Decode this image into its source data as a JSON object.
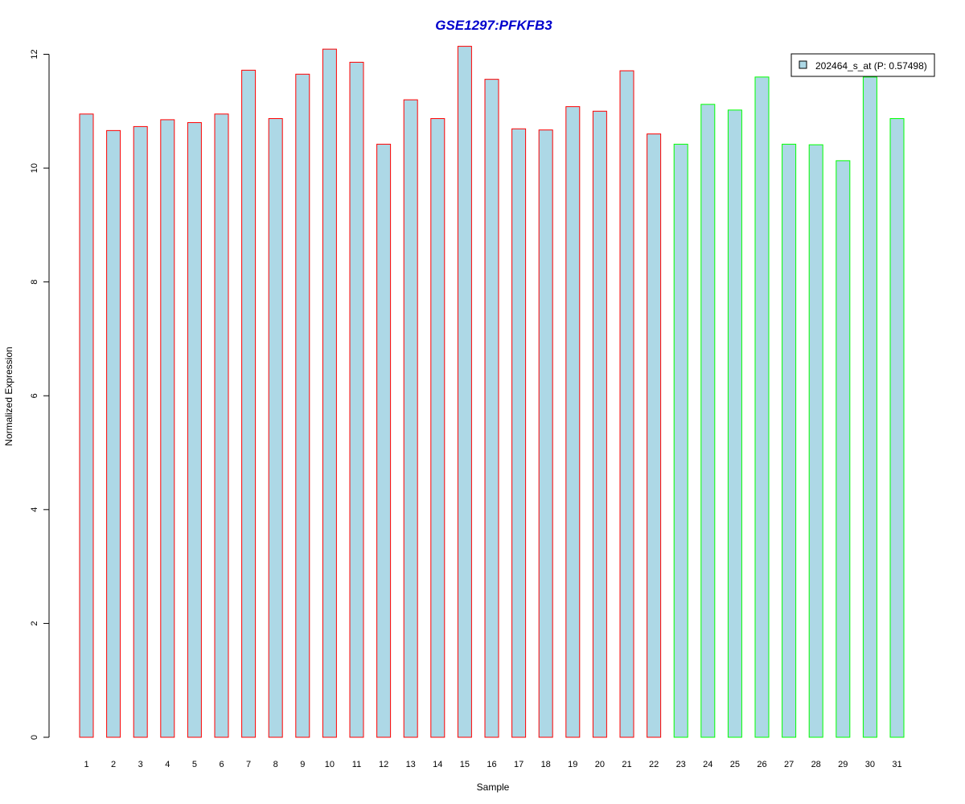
{
  "chart_data": {
    "type": "bar",
    "title": "GSE1297:PFKFB3",
    "xlabel": "Sample",
    "ylabel": "Normalized Expression",
    "ylim": [
      0,
      12
    ],
    "yticks": [
      0,
      2,
      4,
      6,
      8,
      10,
      12
    ],
    "grid": false,
    "legend_placement": "top-right",
    "categories": [
      "1",
      "2",
      "3",
      "4",
      "5",
      "6",
      "7",
      "8",
      "9",
      "10",
      "11",
      "12",
      "13",
      "14",
      "15",
      "16",
      "17",
      "18",
      "19",
      "20",
      "21",
      "22",
      "23",
      "24",
      "25",
      "26",
      "27",
      "28",
      "29",
      "30",
      "31"
    ],
    "series": [
      {
        "name": "202464_s_at (P: 0.57498)",
        "values": [
          10.95,
          10.66,
          10.73,
          10.85,
          10.8,
          10.95,
          11.72,
          10.87,
          11.65,
          12.09,
          11.86,
          10.42,
          11.2,
          10.87,
          12.14,
          11.56,
          10.69,
          10.67,
          11.08,
          11.0,
          11.71,
          10.6,
          10.42,
          11.12,
          11.02,
          11.6,
          10.42,
          10.41,
          10.13,
          11.6,
          10.87
        ]
      }
    ],
    "bar_fill_color": "#add8e6",
    "border_colors": [
      "#ff0000",
      "#ff0000",
      "#ff0000",
      "#ff0000",
      "#ff0000",
      "#ff0000",
      "#ff0000",
      "#ff0000",
      "#ff0000",
      "#ff0000",
      "#ff0000",
      "#ff0000",
      "#ff0000",
      "#ff0000",
      "#ff0000",
      "#ff0000",
      "#ff0000",
      "#ff0000",
      "#ff0000",
      "#ff0000",
      "#ff0000",
      "#ff0000",
      "#00ff00",
      "#00ff00",
      "#00ff00",
      "#00ff00",
      "#00ff00",
      "#00ff00",
      "#00ff00",
      "#00ff00",
      "#00ff00"
    ],
    "title_color": "#0000cc"
  }
}
